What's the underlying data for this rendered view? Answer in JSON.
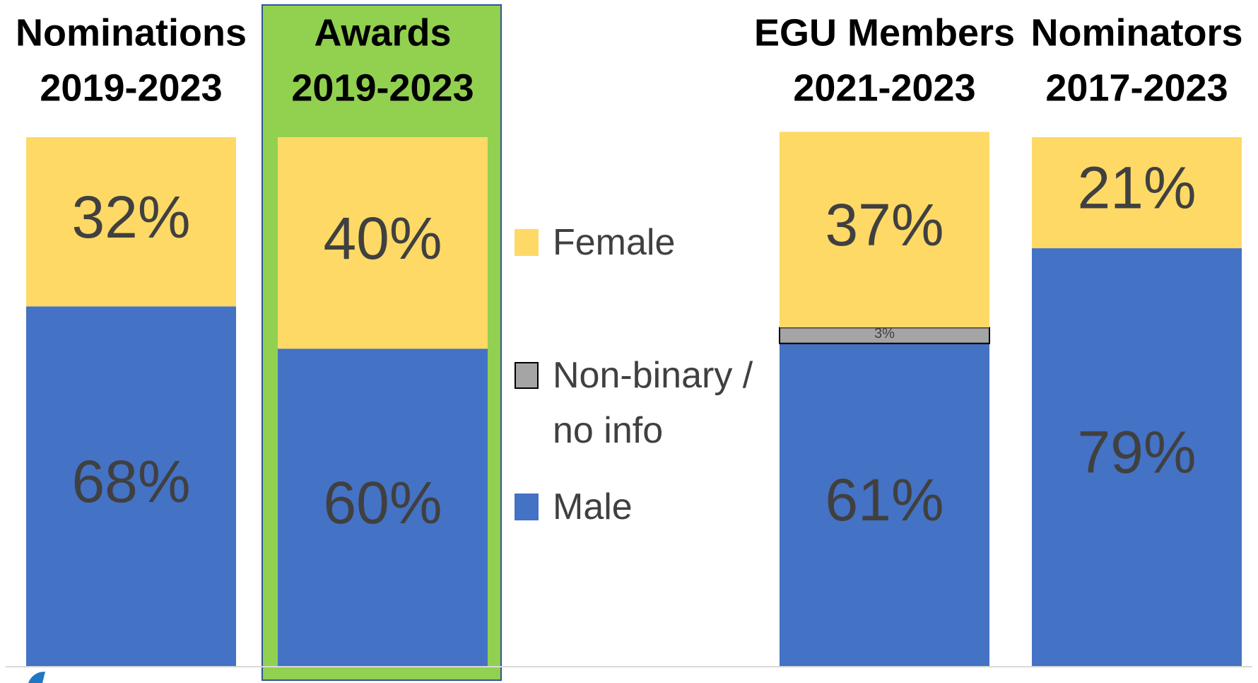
{
  "chart_data": {
    "type": "stacked-bar",
    "categories": [
      [
        "Nominations",
        "2019-2023"
      ],
      [
        "Awards",
        "2019-2023"
      ],
      [
        "EGU Members",
        "2021-2023"
      ],
      [
        "Nominators",
        "2017-2023"
      ]
    ],
    "series": [
      {
        "name": "Male",
        "color": "#4472c4",
        "values": [
          68,
          60,
          61,
          79
        ],
        "value_labels": [
          "68%",
          "60%",
          "61%",
          "79%"
        ]
      },
      {
        "name": "Non-binary / no info",
        "color": "#a5a5a5",
        "values": [
          null,
          null,
          3,
          null
        ],
        "value_labels": [
          null,
          null,
          "3%",
          null
        ]
      },
      {
        "name": "Female",
        "color": "#ffd966",
        "values": [
          32,
          40,
          37,
          21
        ],
        "value_labels": [
          "32%",
          "40%",
          "37%",
          "21%"
        ]
      }
    ],
    "ylim": [
      0,
      100
    ],
    "legend": "center"
  }
}
